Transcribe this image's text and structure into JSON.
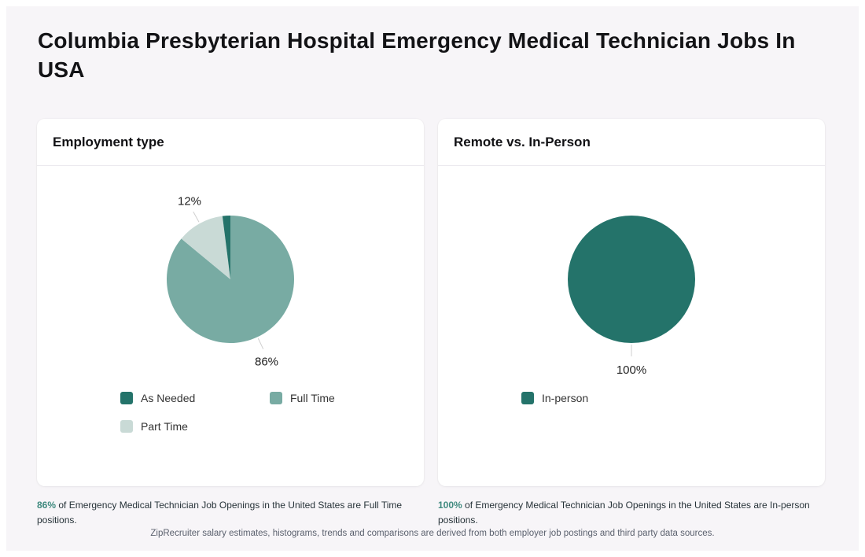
{
  "page": {
    "title": "Columbia Presbyterian Hospital Emergency Medical Technician Jobs In USA",
    "footer": "ZipRecruiter salary estimates, histograms, trends and comparisons are derived from both employer job postings and third party data sources."
  },
  "colors": {
    "dark_teal": "#24736A",
    "medium_teal": "#78ABA3",
    "light_teal": "#C9DAD6",
    "leader_line": "#cfcfcf",
    "caption_highlight": "#3f8a7f",
    "page_background": "#f7f5f8",
    "card_background": "#ffffff"
  },
  "cards": [
    {
      "title": "Employment type",
      "legend": [
        {
          "label": "As Needed",
          "color": "#24736A"
        },
        {
          "label": "Full Time",
          "color": "#78ABA3"
        },
        {
          "label": "Part Time",
          "color": "#C9DAD6"
        }
      ],
      "caption": {
        "highlight": "86%",
        "text": " of Emergency Medical Technician Job Openings in the United States are Full Time positions."
      }
    },
    {
      "title": "Remote vs. In-Person",
      "legend": [
        {
          "label": "In-person",
          "color": "#24736A"
        }
      ],
      "caption": {
        "highlight": "100%",
        "text": " of Emergency Medical Technician Job Openings in the United States are In-person positions."
      }
    }
  ],
  "chart_data": [
    {
      "type": "pie",
      "title": "Employment type",
      "start_angle": "top",
      "direction": "clockwise",
      "legend_position": "bottom",
      "slices": [
        {
          "name": "Full Time",
          "value": 86,
          "label": "86%",
          "color": "#78ABA3"
        },
        {
          "name": "Part Time",
          "value": 12,
          "label": "12%",
          "color": "#C9DAD6"
        },
        {
          "name": "As Needed",
          "value": 2,
          "label": null,
          "color": "#24736A"
        }
      ]
    },
    {
      "type": "pie",
      "title": "Remote vs. In-Person",
      "start_angle": "top",
      "direction": "clockwise",
      "legend_position": "bottom",
      "slices": [
        {
          "name": "In-person",
          "value": 100,
          "label": "100%",
          "color": "#24736A"
        }
      ]
    }
  ]
}
